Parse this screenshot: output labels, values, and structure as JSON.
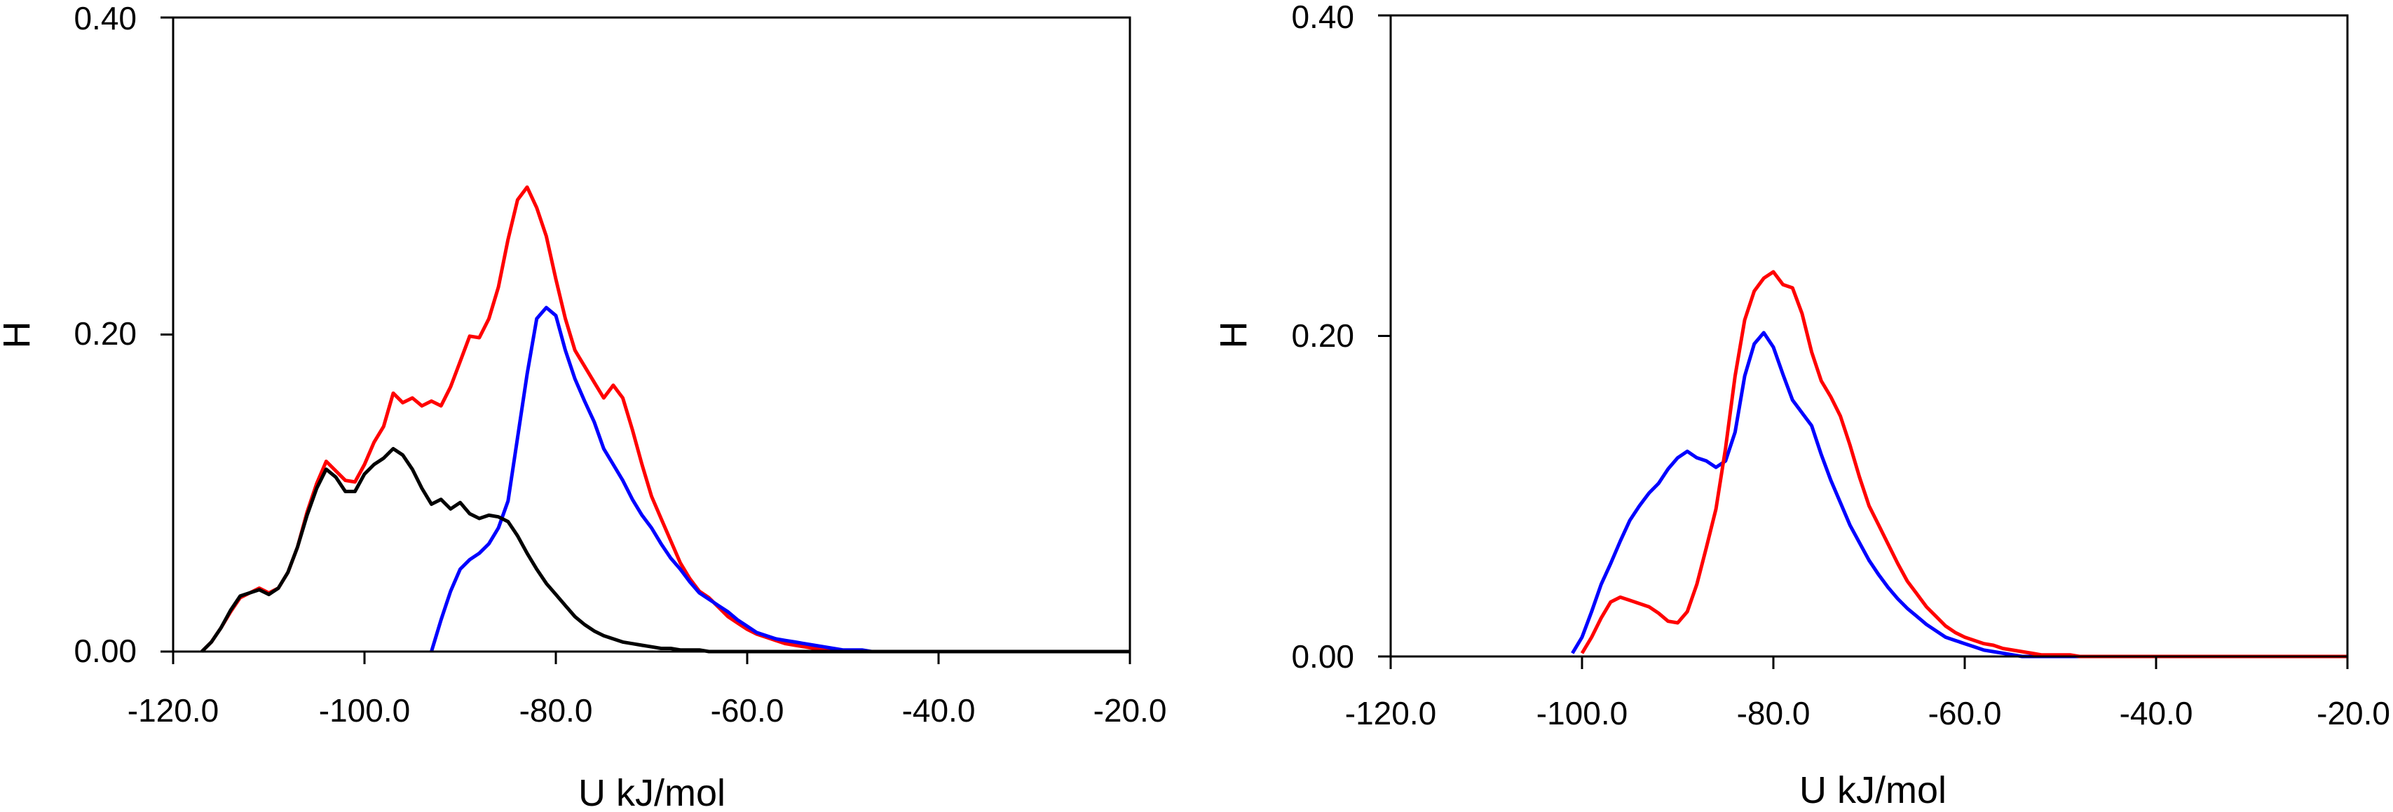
{
  "chart_data": [
    {
      "type": "line",
      "xlabel": "U kJ/mol",
      "ylabel": "H",
      "xlim": [
        -120,
        -20
      ],
      "ylim": [
        0,
        0.4
      ],
      "x_ticks": [
        "-120.0",
        "-100.0",
        "-80.0",
        "-60.0",
        "-40.0",
        "-20.0"
      ],
      "y_ticks": [
        "0.00",
        "0.20",
        "0.40"
      ],
      "grid": false,
      "series": [
        {
          "color": "#ff0000",
          "points": [
            [
              -117,
              0
            ],
            [
              -116,
              0.006
            ],
            [
              -115,
              0.015
            ],
            [
              -114,
              0.025
            ],
            [
              -113,
              0.034
            ],
            [
              -112,
              0.037
            ],
            [
              -111,
              0.04
            ],
            [
              -110,
              0.037
            ],
            [
              -109,
              0.04
            ],
            [
              -108,
              0.05
            ],
            [
              -107,
              0.066
            ],
            [
              -106,
              0.088
            ],
            [
              -105,
              0.106
            ],
            [
              -104,
              0.12
            ],
            [
              -103,
              0.114
            ],
            [
              -102,
              0.108
            ],
            [
              -101,
              0.107
            ],
            [
              -100,
              0.118
            ],
            [
              -99,
              0.132
            ],
            [
              -98,
              0.142
            ],
            [
              -97,
              0.163
            ],
            [
              -96,
              0.157
            ],
            [
              -95,
              0.16
            ],
            [
              -94,
              0.155
            ],
            [
              -93,
              0.158
            ],
            [
              -92,
              0.155
            ],
            [
              -91,
              0.167
            ],
            [
              -90,
              0.183
            ],
            [
              -89,
              0.199
            ],
            [
              -88,
              0.198
            ],
            [
              -87,
              0.21
            ],
            [
              -86,
              0.23
            ],
            [
              -85,
              0.26
            ],
            [
              -84,
              0.285
            ],
            [
              -83,
              0.293
            ],
            [
              -82,
              0.28
            ],
            [
              -81,
              0.262
            ],
            [
              -80,
              0.235
            ],
            [
              -79,
              0.21
            ],
            [
              -78,
              0.19
            ],
            [
              -77,
              0.18
            ],
            [
              -76,
              0.17
            ],
            [
              -75,
              0.16
            ],
            [
              -74,
              0.168
            ],
            [
              -73,
              0.16
            ],
            [
              -72,
              0.14
            ],
            [
              -71,
              0.118
            ],
            [
              -70,
              0.098
            ],
            [
              -69,
              0.084
            ],
            [
              -68,
              0.07
            ],
            [
              -67,
              0.056
            ],
            [
              -66,
              0.046
            ],
            [
              -65,
              0.038
            ],
            [
              -64,
              0.034
            ],
            [
              -63,
              0.028
            ],
            [
              -62,
              0.022
            ],
            [
              -61,
              0.018
            ],
            [
              -60,
              0.014
            ],
            [
              -59,
              0.011
            ],
            [
              -58,
              0.009
            ],
            [
              -57,
              0.007
            ],
            [
              -56,
              0.005
            ],
            [
              -55,
              0.004
            ],
            [
              -54,
              0.003
            ],
            [
              -53,
              0.002
            ],
            [
              -52,
              0.001
            ],
            [
              -51,
              0.001
            ],
            [
              -50,
              0
            ],
            [
              -20,
              0
            ]
          ]
        },
        {
          "color": "#0000ff",
          "points": [
            [
              -93,
              0
            ],
            [
              -92,
              0.02
            ],
            [
              -91,
              0.038
            ],
            [
              -90,
              0.052
            ],
            [
              -89,
              0.058
            ],
            [
              -88,
              0.062
            ],
            [
              -87,
              0.068
            ],
            [
              -86,
              0.078
            ],
            [
              -85,
              0.095
            ],
            [
              -84,
              0.135
            ],
            [
              -83,
              0.175
            ],
            [
              -82,
              0.21
            ],
            [
              -81,
              0.217
            ],
            [
              -80,
              0.212
            ],
            [
              -79,
              0.19
            ],
            [
              -78,
              0.172
            ],
            [
              -77,
              0.158
            ],
            [
              -76,
              0.145
            ],
            [
              -75,
              0.128
            ],
            [
              -74,
              0.118
            ],
            [
              -73,
              0.108
            ],
            [
              -72,
              0.096
            ],
            [
              -71,
              0.086
            ],
            [
              -70,
              0.078
            ],
            [
              -69,
              0.068
            ],
            [
              -68,
              0.059
            ],
            [
              -67,
              0.052
            ],
            [
              -66,
              0.044
            ],
            [
              -65,
              0.037
            ],
            [
              -64,
              0.033
            ],
            [
              -63,
              0.029
            ],
            [
              -62,
              0.025
            ],
            [
              -61,
              0.02
            ],
            [
              -60,
              0.016
            ],
            [
              -59,
              0.012
            ],
            [
              -58,
              0.01
            ],
            [
              -57,
              0.008
            ],
            [
              -56,
              0.007
            ],
            [
              -55,
              0.006
            ],
            [
              -54,
              0.005
            ],
            [
              -53,
              0.004
            ],
            [
              -52,
              0.003
            ],
            [
              -51,
              0.002
            ],
            [
              -50,
              0.001
            ],
            [
              -49,
              0.001
            ],
            [
              -48,
              0.001
            ],
            [
              -47,
              0
            ],
            [
              -20,
              0
            ]
          ]
        },
        {
          "color": "#000000",
          "points": [
            [
              -117,
              0
            ],
            [
              -116,
              0.006
            ],
            [
              -115,
              0.015
            ],
            [
              -114,
              0.026
            ],
            [
              -113,
              0.035
            ],
            [
              -112,
              0.037
            ],
            [
              -111,
              0.039
            ],
            [
              -110,
              0.036
            ],
            [
              -109,
              0.04
            ],
            [
              -108,
              0.05
            ],
            [
              -107,
              0.066
            ],
            [
              -106,
              0.086
            ],
            [
              -105,
              0.103
            ],
            [
              -104,
              0.115
            ],
            [
              -103,
              0.11
            ],
            [
              -102,
              0.101
            ],
            [
              -101,
              0.101
            ],
            [
              -100,
              0.112
            ],
            [
              -99,
              0.118
            ],
            [
              -98,
              0.122
            ],
            [
              -97,
              0.128
            ],
            [
              -96,
              0.124
            ],
            [
              -95,
              0.115
            ],
            [
              -94,
              0.103
            ],
            [
              -93,
              0.093
            ],
            [
              -92,
              0.096
            ],
            [
              -91,
              0.09
            ],
            [
              -90,
              0.094
            ],
            [
              -89,
              0.087
            ],
            [
              -88,
              0.084
            ],
            [
              -87,
              0.086
            ],
            [
              -86,
              0.085
            ],
            [
              -85,
              0.082
            ],
            [
              -84,
              0.073
            ],
            [
              -83,
              0.062
            ],
            [
              -82,
              0.052
            ],
            [
              -81,
              0.043
            ],
            [
              -80,
              0.036
            ],
            [
              -79,
              0.029
            ],
            [
              -78,
              0.022
            ],
            [
              -77,
              0.017
            ],
            [
              -76,
              0.013
            ],
            [
              -75,
              0.01
            ],
            [
              -74,
              0.008
            ],
            [
              -73,
              0.006
            ],
            [
              -72,
              0.005
            ],
            [
              -71,
              0.004
            ],
            [
              -70,
              0.003
            ],
            [
              -69,
              0.002
            ],
            [
              -68,
              0.002
            ],
            [
              -67,
              0.001
            ],
            [
              -66,
              0.001
            ],
            [
              -65,
              0.001
            ],
            [
              -64,
              0
            ],
            [
              -20,
              0
            ]
          ]
        }
      ]
    },
    {
      "type": "line",
      "xlabel": "U kJ/mol",
      "ylabel": "H",
      "xlim": [
        -120,
        -20
      ],
      "ylim": [
        0,
        0.4
      ],
      "x_ticks": [
        "-120.0",
        "-100.0",
        "-80.0",
        "-60.0",
        "-40.0",
        "-20.0"
      ],
      "y_ticks": [
        "0.00",
        "0.20",
        "0.40"
      ],
      "grid": false,
      "series": [
        {
          "color": "#0000ff",
          "points": [
            [
              -101,
              0.002
            ],
            [
              -100,
              0.012
            ],
            [
              -99,
              0.028
            ],
            [
              -98,
              0.045
            ],
            [
              -97,
              0.058
            ],
            [
              -96,
              0.072
            ],
            [
              -95,
              0.085
            ],
            [
              -94,
              0.094
            ],
            [
              -93,
              0.102
            ],
            [
              -92,
              0.108
            ],
            [
              -91,
              0.117
            ],
            [
              -90,
              0.124
            ],
            [
              -89,
              0.128
            ],
            [
              -88,
              0.124
            ],
            [
              -87,
              0.122
            ],
            [
              -86,
              0.118
            ],
            [
              -85,
              0.122
            ],
            [
              -84,
              0.14
            ],
            [
              -83,
              0.175
            ],
            [
              -82,
              0.195
            ],
            [
              -81,
              0.202
            ],
            [
              -80,
              0.193
            ],
            [
              -79,
              0.176
            ],
            [
              -78,
              0.16
            ],
            [
              -77,
              0.152
            ],
            [
              -76,
              0.144
            ],
            [
              -75,
              0.126
            ],
            [
              -74,
              0.11
            ],
            [
              -73,
              0.096
            ],
            [
              -72,
              0.082
            ],
            [
              -71,
              0.071
            ],
            [
              -70,
              0.06
            ],
            [
              -69,
              0.051
            ],
            [
              -68,
              0.043
            ],
            [
              -67,
              0.036
            ],
            [
              -66,
              0.03
            ],
            [
              -65,
              0.025
            ],
            [
              -64,
              0.02
            ],
            [
              -63,
              0.016
            ],
            [
              -62,
              0.012
            ],
            [
              -61,
              0.01
            ],
            [
              -60,
              0.008
            ],
            [
              -59,
              0.006
            ],
            [
              -58,
              0.004
            ],
            [
              -57,
              0.003
            ],
            [
              -56,
              0.002
            ],
            [
              -55,
              0.001
            ],
            [
              -54,
              0
            ],
            [
              -20,
              0
            ]
          ]
        },
        {
          "color": "#ff0000",
          "points": [
            [
              -100,
              0.002
            ],
            [
              -99,
              0.012
            ],
            [
              -98,
              0.024
            ],
            [
              -97,
              0.034
            ],
            [
              -96,
              0.037
            ],
            [
              -95,
              0.035
            ],
            [
              -94,
              0.033
            ],
            [
              -93,
              0.031
            ],
            [
              -92,
              0.027
            ],
            [
              -91,
              0.022
            ],
            [
              -90,
              0.021
            ],
            [
              -89,
              0.028
            ],
            [
              -88,
              0.045
            ],
            [
              -87,
              0.068
            ],
            [
              -86,
              0.092
            ],
            [
              -85,
              0.13
            ],
            [
              -84,
              0.175
            ],
            [
              -83,
              0.21
            ],
            [
              -82,
              0.228
            ],
            [
              -81,
              0.236
            ],
            [
              -80,
              0.24
            ],
            [
              -79,
              0.232
            ],
            [
              -78,
              0.23
            ],
            [
              -77,
              0.214
            ],
            [
              -76,
              0.19
            ],
            [
              -75,
              0.172
            ],
            [
              -74,
              0.162
            ],
            [
              -73,
              0.15
            ],
            [
              -72,
              0.132
            ],
            [
              -71,
              0.112
            ],
            [
              -70,
              0.094
            ],
            [
              -69,
              0.082
            ],
            [
              -68,
              0.07
            ],
            [
              -67,
              0.058
            ],
            [
              -66,
              0.047
            ],
            [
              -65,
              0.039
            ],
            [
              -64,
              0.031
            ],
            [
              -63,
              0.025
            ],
            [
              -62,
              0.019
            ],
            [
              -61,
              0.015
            ],
            [
              -60,
              0.012
            ],
            [
              -59,
              0.01
            ],
            [
              -58,
              0.008
            ],
            [
              -57,
              0.007
            ],
            [
              -56,
              0.005
            ],
            [
              -55,
              0.004
            ],
            [
              -54,
              0.003
            ],
            [
              -53,
              0.002
            ],
            [
              -52,
              0.001
            ],
            [
              -51,
              0.001
            ],
            [
              -50,
              0.001
            ],
            [
              -49,
              0.001
            ],
            [
              -48,
              0
            ],
            [
              -20,
              0
            ]
          ]
        }
      ]
    }
  ]
}
